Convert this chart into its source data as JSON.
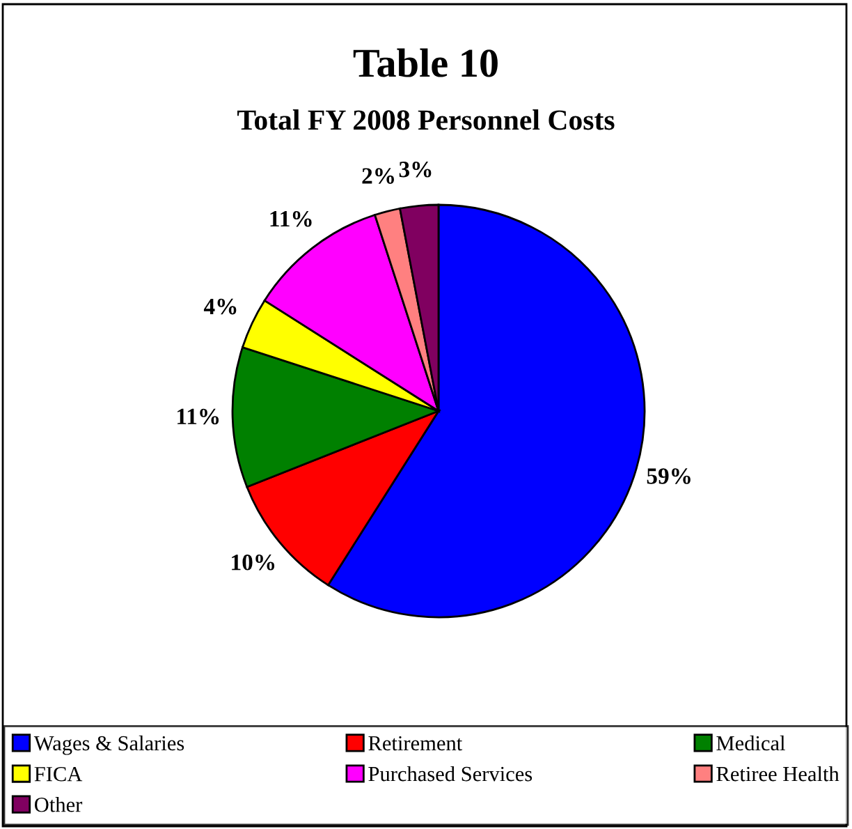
{
  "chart_data": {
    "type": "pie",
    "title": "Table 10",
    "subtitle": "Total FY 2008 Personnel Costs",
    "categories": [
      "Wages & Salaries",
      "Retirement",
      "Medical",
      "FICA",
      "Purchased Services",
      "Retiree Health",
      "Other"
    ],
    "values": [
      59,
      10,
      11,
      4,
      11,
      2,
      3
    ],
    "colors": [
      "#0000ff",
      "#ff0000",
      "#008000",
      "#ffff00",
      "#ff00ff",
      "#ff8080",
      "#800060"
    ],
    "value_labels": [
      "59%",
      "10%",
      "11%",
      "4%",
      "11%",
      "2%",
      "3%"
    ],
    "legend": "bottom"
  }
}
